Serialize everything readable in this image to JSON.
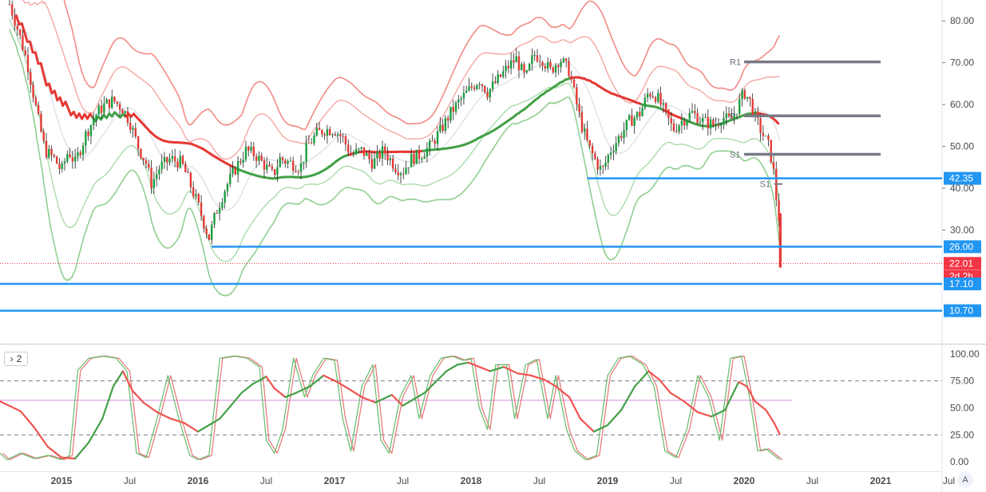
{
  "chart_data": [
    {
      "type": "candlestick",
      "panel": "price",
      "y_ticks": [
        "80.00",
        "70.00",
        "60.00",
        "50.00",
        "40.00",
        "30.00"
      ],
      "ylim": [
        3,
        85
      ],
      "x_ticks": [
        "2015",
        "Jul",
        "2016",
        "Jul",
        "2017",
        "Jul",
        "2018",
        "Jul",
        "2019",
        "Jul",
        "2020",
        "Jul",
        "2021",
        "Jul"
      ],
      "x_tick_dates": [
        2015.0,
        2015.5,
        2016.0,
        2016.5,
        2017.0,
        2017.5,
        2018.0,
        2018.5,
        2019.0,
        2019.5,
        2020.0,
        2020.5,
        2021.0,
        2021.5
      ],
      "xlim": [
        2014.55,
        2021.45
      ],
      "close_path": [
        [
          2014.62,
          84
        ],
        [
          2014.68,
          78
        ],
        [
          2014.75,
          70
        ],
        [
          2014.82,
          58
        ],
        [
          2014.88,
          49
        ],
        [
          2014.95,
          47
        ],
        [
          2015.0,
          44
        ],
        [
          2015.05,
          49
        ],
        [
          2015.1,
          46
        ],
        [
          2015.18,
          53
        ],
        [
          2015.26,
          58
        ],
        [
          2015.32,
          60
        ],
        [
          2015.38,
          61
        ],
        [
          2015.45,
          59
        ],
        [
          2015.5,
          56
        ],
        [
          2015.56,
          50
        ],
        [
          2015.62,
          46
        ],
        [
          2015.66,
          41
        ],
        [
          2015.72,
          45
        ],
        [
          2015.8,
          47
        ],
        [
          2015.88,
          46
        ],
        [
          2015.93,
          42
        ],
        [
          2016.0,
          36
        ],
        [
          2016.04,
          32
        ],
        [
          2016.08,
          28
        ],
        [
          2016.13,
          34
        ],
        [
          2016.2,
          40
        ],
        [
          2016.28,
          45
        ],
        [
          2016.35,
          49
        ],
        [
          2016.42,
          48
        ],
        [
          2016.5,
          45
        ],
        [
          2016.55,
          43
        ],
        [
          2016.6,
          47
        ],
        [
          2016.68,
          46
        ],
        [
          2016.75,
          45
        ],
        [
          2016.8,
          50
        ],
        [
          2016.87,
          53
        ],
        [
          2016.93,
          54
        ],
        [
          2017.0,
          54
        ],
        [
          2017.06,
          52
        ],
        [
          2017.12,
          48
        ],
        [
          2017.2,
          49
        ],
        [
          2017.28,
          46
        ],
        [
          2017.36,
          49
        ],
        [
          2017.45,
          45
        ],
        [
          2017.5,
          44
        ],
        [
          2017.56,
          47
        ],
        [
          2017.63,
          48
        ],
        [
          2017.7,
          50
        ],
        [
          2017.78,
          54
        ],
        [
          2017.85,
          58
        ],
        [
          2017.92,
          61
        ],
        [
          2018.0,
          64
        ],
        [
          2018.06,
          66
        ],
        [
          2018.12,
          63
        ],
        [
          2018.2,
          66
        ],
        [
          2018.27,
          69
        ],
        [
          2018.33,
          71
        ],
        [
          2018.4,
          66
        ],
        [
          2018.46,
          72
        ],
        [
          2018.52,
          71
        ],
        [
          2018.58,
          68
        ],
        [
          2018.65,
          71
        ],
        [
          2018.72,
          68
        ],
        [
          2018.76,
          62
        ],
        [
          2018.81,
          55
        ],
        [
          2018.86,
          50
        ],
        [
          2018.92,
          46
        ],
        [
          2018.96,
          44
        ],
        [
          2019.02,
          49
        ],
        [
          2019.08,
          52
        ],
        [
          2019.16,
          56
        ],
        [
          2019.24,
          58
        ],
        [
          2019.3,
          63
        ],
        [
          2019.36,
          62
        ],
        [
          2019.42,
          58
        ],
        [
          2019.48,
          54
        ],
        [
          2019.54,
          56
        ],
        [
          2019.62,
          58
        ],
        [
          2019.7,
          56
        ],
        [
          2019.78,
          55
        ],
        [
          2019.84,
          57
        ],
        [
          2019.9,
          56
        ],
        [
          2019.96,
          60
        ],
        [
          2020.0,
          63
        ],
        [
          2020.04,
          61
        ],
        [
          2020.08,
          57
        ],
        [
          2020.12,
          54
        ],
        [
          2020.15,
          52
        ],
        [
          2020.18,
          50
        ],
        [
          2020.2,
          47
        ],
        [
          2020.22,
          43
        ],
        [
          2020.24,
          36
        ],
        [
          2020.26,
          32
        ],
        [
          2020.265,
          22.01
        ]
      ],
      "pivots": [
        {
          "label": "R1",
          "price": 70.2
        },
        {
          "label": "P",
          "price": 57.3
        },
        {
          "label": "S1",
          "price": 48.1
        },
        {
          "label": "S1",
          "price": 41.0
        }
      ],
      "horizontal_levels": [
        42.35,
        26.0,
        17.1,
        10.7
      ],
      "price_labels": [
        {
          "text": "42.35",
          "price": 42.35,
          "color": "#2196f3"
        },
        {
          "text": "26.00",
          "price": 26.0,
          "color": "#2196f3"
        },
        {
          "text": "22.01",
          "price": 22.01,
          "color": "#f23645"
        },
        {
          "text": "2d 2h",
          "price": 18.9,
          "color": "#f23645"
        },
        {
          "text": "17.10",
          "price": 17.1,
          "color": "#2196f3"
        },
        {
          "text": "10.70",
          "price": 10.7,
          "color": "#2196f3"
        }
      ],
      "last_price": "22.01",
      "countdown": "2d 2h",
      "colors": {
        "up": "#26a69a",
        "down": "#ef5350",
        "ma_long": "#e53935",
        "ma_green": "#43a047",
        "level": "#2196f3",
        "pivot": "#787b86"
      }
    },
    {
      "type": "line",
      "panel": "oscillator",
      "pane_count_label": "2",
      "y_ticks": [
        "100.00",
        "75.00",
        "50.00",
        "25.00",
        "0.00"
      ],
      "ylim": [
        -8,
        108
      ],
      "levels": [
        75,
        25
      ],
      "series": [
        {
          "values_path": [
            [
              2014.55,
              56
            ],
            [
              2014.7,
              47
            ],
            [
              2014.8,
              32
            ],
            [
              2014.9,
              14
            ],
            [
              2015.0,
              4
            ],
            [
              2015.1,
              3
            ],
            [
              2015.2,
              18
            ],
            [
              2015.3,
              40
            ],
            [
              2015.38,
              70
            ],
            [
              2015.45,
              84
            ],
            [
              2015.52,
              66
            ],
            [
              2015.6,
              55
            ],
            [
              2015.7,
              46
            ],
            [
              2015.8,
              40
            ],
            [
              2015.9,
              36
            ],
            [
              2016.0,
              28
            ],
            [
              2016.08,
              34
            ],
            [
              2016.16,
              40
            ],
            [
              2016.24,
              52
            ],
            [
              2016.32,
              64
            ],
            [
              2016.4,
              72
            ],
            [
              2016.5,
              79
            ],
            [
              2016.56,
              68
            ],
            [
              2016.64,
              60
            ],
            [
              2016.72,
              64
            ],
            [
              2016.82,
              70
            ],
            [
              2016.92,
              80
            ],
            [
              2017.02,
              74
            ],
            [
              2017.1,
              68
            ],
            [
              2017.2,
              60
            ],
            [
              2017.3,
              55
            ],
            [
              2017.42,
              62
            ],
            [
              2017.5,
              52
            ],
            [
              2017.58,
              58
            ],
            [
              2017.66,
              64
            ],
            [
              2017.74,
              74
            ],
            [
              2017.82,
              84
            ],
            [
              2017.9,
              90
            ],
            [
              2017.98,
              92
            ],
            [
              2018.06,
              88
            ],
            [
              2018.14,
              84
            ],
            [
              2018.24,
              88
            ],
            [
              2018.34,
              82
            ],
            [
              2018.44,
              80
            ],
            [
              2018.54,
              76
            ],
            [
              2018.62,
              70
            ],
            [
              2018.72,
              60
            ],
            [
              2018.8,
              40
            ],
            [
              2018.9,
              28
            ],
            [
              2019.0,
              34
            ],
            [
              2019.1,
              48
            ],
            [
              2019.2,
              70
            ],
            [
              2019.3,
              84
            ],
            [
              2019.38,
              76
            ],
            [
              2019.46,
              64
            ],
            [
              2019.56,
              56
            ],
            [
              2019.66,
              46
            ],
            [
              2019.76,
              42
            ],
            [
              2019.86,
              48
            ],
            [
              2019.96,
              74
            ],
            [
              2020.02,
              70
            ],
            [
              2020.08,
              56
            ],
            [
              2020.16,
              48
            ],
            [
              2020.22,
              36
            ],
            [
              2020.26,
              26
            ]
          ]
        },
        {
          "values_path": [
            [
              2014.55,
              8
            ],
            [
              2014.6,
              2
            ],
            [
              2014.7,
              8
            ],
            [
              2014.8,
              3
            ],
            [
              2014.9,
              6
            ],
            [
              2015.0,
              2
            ],
            [
              2015.06,
              6
            ],
            [
              2015.12,
              85
            ],
            [
              2015.2,
              96
            ],
            [
              2015.3,
              98
            ],
            [
              2015.4,
              96
            ],
            [
              2015.48,
              84
            ],
            [
              2015.55,
              8
            ],
            [
              2015.62,
              4
            ],
            [
              2015.7,
              40
            ],
            [
              2015.78,
              80
            ],
            [
              2015.86,
              40
            ],
            [
              2015.94,
              6
            ],
            [
              2016.0,
              2
            ],
            [
              2016.08,
              6
            ],
            [
              2016.16,
              96
            ],
            [
              2016.26,
              98
            ],
            [
              2016.36,
              96
            ],
            [
              2016.45,
              88
            ],
            [
              2016.5,
              20
            ],
            [
              2016.56,
              8
            ],
            [
              2016.62,
              30
            ],
            [
              2016.7,
              96
            ],
            [
              2016.78,
              60
            ],
            [
              2016.84,
              80
            ],
            [
              2016.92,
              96
            ],
            [
              2017.0,
              94
            ],
            [
              2017.06,
              40
            ],
            [
              2017.12,
              10
            ],
            [
              2017.2,
              70
            ],
            [
              2017.28,
              90
            ],
            [
              2017.34,
              20
            ],
            [
              2017.4,
              8
            ],
            [
              2017.48,
              60
            ],
            [
              2017.56,
              80
            ],
            [
              2017.62,
              40
            ],
            [
              2017.7,
              80
            ],
            [
              2017.78,
              96
            ],
            [
              2017.86,
              98
            ],
            [
              2017.94,
              94
            ],
            [
              2018.0,
              96
            ],
            [
              2018.06,
              50
            ],
            [
              2018.12,
              30
            ],
            [
              2018.18,
              90
            ],
            [
              2018.26,
              90
            ],
            [
              2018.32,
              40
            ],
            [
              2018.4,
              90
            ],
            [
              2018.48,
              95
            ],
            [
              2018.56,
              40
            ],
            [
              2018.62,
              80
            ],
            [
              2018.7,
              30
            ],
            [
              2018.76,
              10
            ],
            [
              2018.84,
              2
            ],
            [
              2018.92,
              6
            ],
            [
              2019.0,
              80
            ],
            [
              2019.08,
              96
            ],
            [
              2019.16,
              98
            ],
            [
              2019.26,
              90
            ],
            [
              2019.34,
              70
            ],
            [
              2019.42,
              10
            ],
            [
              2019.5,
              4
            ],
            [
              2019.58,
              30
            ],
            [
              2019.66,
              80
            ],
            [
              2019.74,
              60
            ],
            [
              2019.82,
              20
            ],
            [
              2019.9,
              96
            ],
            [
              2019.98,
              98
            ],
            [
              2020.04,
              60
            ],
            [
              2020.1,
              10
            ],
            [
              2020.16,
              12
            ],
            [
              2020.22,
              6
            ],
            [
              2020.26,
              2
            ]
          ]
        }
      ],
      "colors": {
        "slow": "#ef5350",
        "fast": "#4caf50",
        "level": "#787b86"
      }
    }
  ]
}
